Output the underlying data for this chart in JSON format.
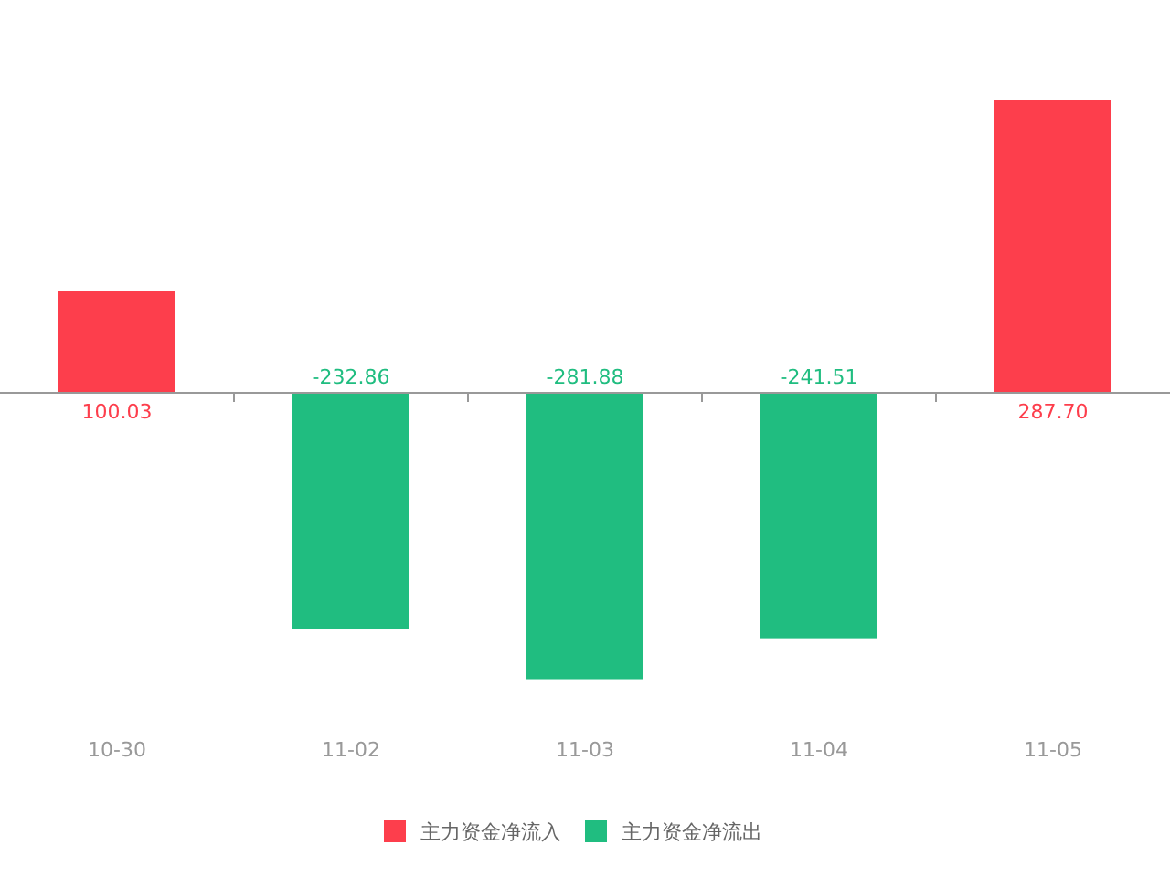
{
  "chart_data": {
    "type": "bar",
    "categories": [
      "10-30",
      "11-02",
      "11-03",
      "11-04",
      "11-05"
    ],
    "series": [
      {
        "name": "主力资金净流入",
        "color": "#fd3e4c",
        "values": [
          100.03,
          null,
          null,
          null,
          287.7
        ],
        "value_labels": [
          "100.03",
          null,
          null,
          null,
          "287.70"
        ]
      },
      {
        "name": "主力资金净流出",
        "color": "#20bd80",
        "values": [
          null,
          -232.86,
          -281.88,
          -241.51,
          null
        ],
        "value_labels": [
          null,
          "-232.86",
          "-281.88",
          "-241.51",
          null
        ]
      }
    ],
    "legend": "bottom"
  }
}
